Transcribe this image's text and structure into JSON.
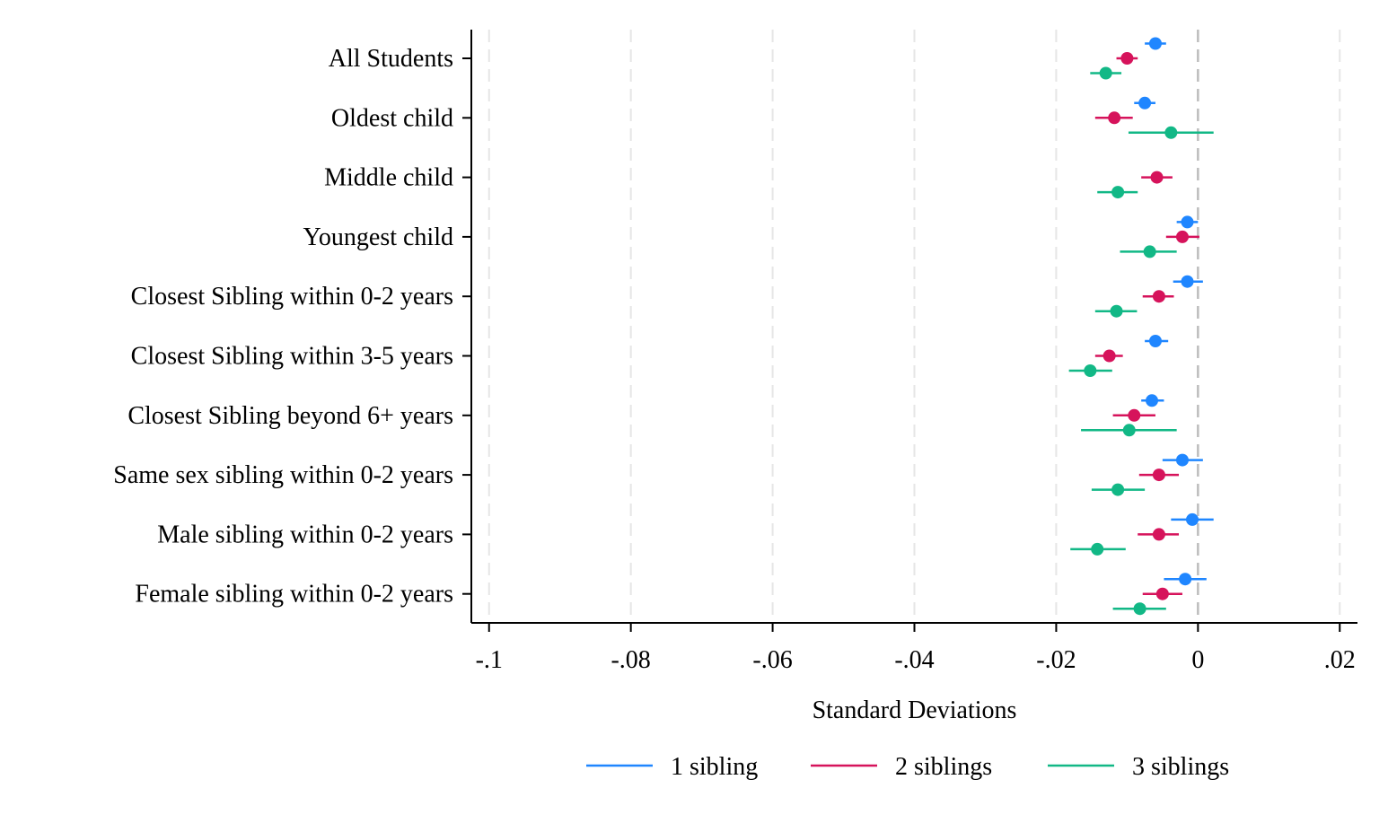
{
  "chart_data": {
    "type": "scatter",
    "subtype": "coefficient-plot-with-confidence-intervals",
    "orientation": "horizontal",
    "xlabel": "Standard Deviations",
    "ylabel": "",
    "xlim": [
      -0.1025,
      0.0225
    ],
    "xticks": [
      -0.1,
      -0.08,
      -0.06,
      -0.04,
      -0.02,
      0,
      0.02
    ],
    "xtick_labels": [
      "-.1",
      "-.08",
      "-.06",
      "-.04",
      "-.02",
      "0",
      ".02"
    ],
    "reference_line": 0,
    "grid": "vertical dashed at x ticks",
    "legend_position": "bottom",
    "categories": [
      "All Students",
      "Oldest child",
      "Middle child",
      "Youngest child",
      "Closest Sibling within 0-2 years",
      "Closest Sibling within 3-5 years",
      "Closest Sibling beyond 6+ years",
      "Same sex sibling within 0-2 years",
      "Male sibling within 0-2 years",
      "Female sibling within 0-2 years"
    ],
    "series": [
      {
        "name": "1 sibling",
        "color": "#1f86ff",
        "points": [
          {
            "value": -0.006,
            "ci": [
              -0.0075,
              -0.0045
            ]
          },
          {
            "value": -0.0075,
            "ci": [
              -0.009,
              -0.006
            ]
          },
          null,
          {
            "value": -0.0015,
            "ci": [
              -0.003,
              0.0
            ]
          },
          {
            "value": -0.0015,
            "ci": [
              -0.0035,
              0.0007
            ]
          },
          {
            "value": -0.006,
            "ci": [
              -0.0075,
              -0.0042
            ]
          },
          {
            "value": -0.0065,
            "ci": [
              -0.008,
              -0.0048
            ]
          },
          {
            "value": -0.0022,
            "ci": [
              -0.005,
              0.0007
            ]
          },
          {
            "value": -0.0008,
            "ci": [
              -0.0038,
              0.0022
            ]
          },
          {
            "value": -0.0018,
            "ci": [
              -0.0048,
              0.0012
            ]
          }
        ]
      },
      {
        "name": "2 siblings",
        "color": "#d6135b",
        "points": [
          {
            "value": -0.01,
            "ci": [
              -0.0115,
              -0.0085
            ]
          },
          {
            "value": -0.0118,
            "ci": [
              -0.0145,
              -0.0092
            ]
          },
          {
            "value": -0.0058,
            "ci": [
              -0.008,
              -0.0036
            ]
          },
          {
            "value": -0.0022,
            "ci": [
              -0.0045,
              0.0002
            ]
          },
          {
            "value": -0.0055,
            "ci": [
              -0.0078,
              -0.0034
            ]
          },
          {
            "value": -0.0125,
            "ci": [
              -0.0145,
              -0.0106
            ]
          },
          {
            "value": -0.009,
            "ci": [
              -0.012,
              -0.006
            ]
          },
          {
            "value": -0.0055,
            "ci": [
              -0.0083,
              -0.0027
            ]
          },
          {
            "value": -0.0055,
            "ci": [
              -0.0085,
              -0.0027
            ]
          },
          {
            "value": -0.005,
            "ci": [
              -0.0078,
              -0.0022
            ]
          }
        ]
      },
      {
        "name": "3 siblings",
        "color": "#12b886",
        "points": [
          {
            "value": -0.013,
            "ci": [
              -0.0152,
              -0.0108
            ]
          },
          {
            "value": -0.0038,
            "ci": [
              -0.0098,
              0.0022
            ]
          },
          {
            "value": -0.0113,
            "ci": [
              -0.0142,
              -0.0085
            ]
          },
          {
            "value": -0.0068,
            "ci": [
              -0.011,
              -0.003
            ]
          },
          {
            "value": -0.0115,
            "ci": [
              -0.0145,
              -0.0086
            ]
          },
          {
            "value": -0.0152,
            "ci": [
              -0.0182,
              -0.0121
            ]
          },
          {
            "value": -0.0097,
            "ci": [
              -0.0165,
              -0.003
            ]
          },
          {
            "value": -0.0113,
            "ci": [
              -0.015,
              -0.0075
            ]
          },
          {
            "value": -0.0142,
            "ci": [
              -0.018,
              -0.0102
            ]
          },
          {
            "value": -0.0082,
            "ci": [
              -0.012,
              -0.0045
            ]
          }
        ]
      }
    ]
  },
  "colors": {
    "grid": "#e6e6e6",
    "zero_line": "#bdbdbd",
    "axis": "#000000"
  }
}
